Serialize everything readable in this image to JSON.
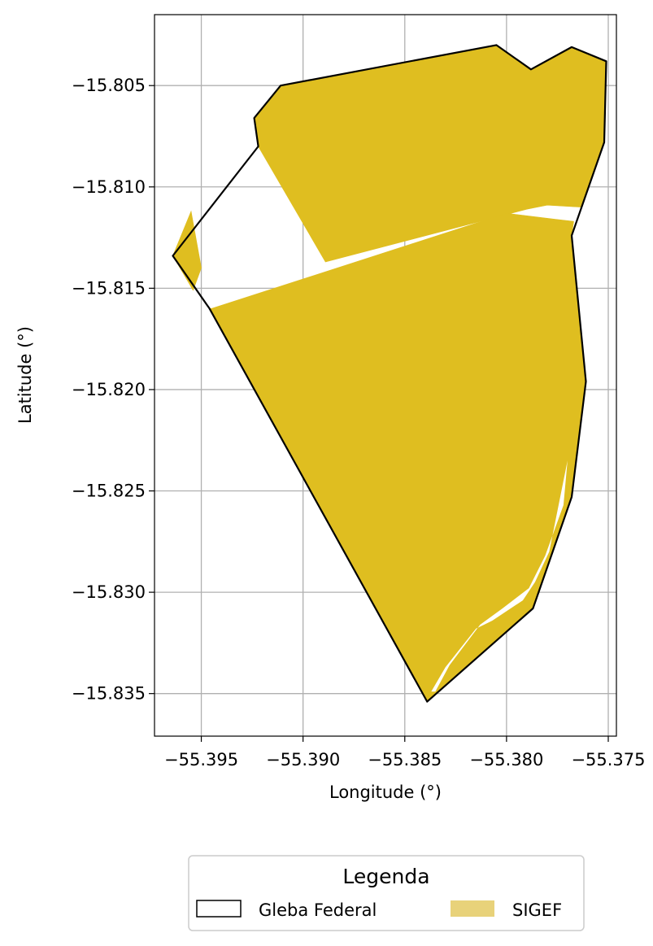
{
  "chart_data": {
    "type": "map",
    "xlabel": "Longitude (°)",
    "ylabel": "Latitude (°)",
    "xlim": [
      -55.3973,
      -55.3746
    ],
    "ylim": [
      -15.8371,
      -15.8015
    ],
    "x_ticks": [
      -55.395,
      -55.39,
      -55.385,
      -55.38,
      -55.375
    ],
    "x_tick_labels": [
      "−55.395",
      "−55.390",
      "−55.385",
      "−55.380",
      "−55.375"
    ],
    "y_ticks": [
      -15.805,
      -15.81,
      -15.815,
      -15.82,
      -15.825,
      -15.83,
      -15.835
    ],
    "y_tick_labels": [
      "−15.805",
      "−15.810",
      "−15.815",
      "−15.820",
      "−15.825",
      "−15.830",
      "−15.835"
    ],
    "grid": true,
    "legend": {
      "title": "Legenda",
      "placement": "bottom-center",
      "items": [
        {
          "label": "Gleba Federal",
          "style": "outline",
          "color": "#000000"
        },
        {
          "label": "SIGEF",
          "style": "fill",
          "color": "#e8d27a"
        }
      ]
    },
    "colors": {
      "sigef": "#dfbe20",
      "gleba_edge": "#000000",
      "grid": "#b0b0b0"
    },
    "gleba_federal": [
      [
        -55.3805,
        -15.803
      ],
      [
        -55.3788,
        -15.8042
      ],
      [
        -55.3768,
        -15.8031
      ],
      [
        -55.3751,
        -15.8038
      ],
      [
        -55.3752,
        -15.8078
      ],
      [
        -55.3768,
        -15.8124
      ],
      [
        -55.3761,
        -15.8196
      ],
      [
        -55.3768,
        -15.8253
      ],
      [
        -55.3787,
        -15.8308
      ],
      [
        -55.3839,
        -15.8354
      ],
      [
        -55.3946,
        -15.816
      ],
      [
        -55.3964,
        -15.8134
      ],
      [
        -55.3922,
        -15.808
      ],
      [
        -55.3924,
        -15.8066
      ],
      [
        -55.3911,
        -15.805
      ]
    ],
    "sigef_parcels": [
      [
        [
          -55.3805,
          -15.803
        ],
        [
          -55.3788,
          -15.8042
        ],
        [
          -55.3768,
          -15.8031
        ],
        [
          -55.3751,
          -15.8038
        ],
        [
          -55.3752,
          -15.8078
        ],
        [
          -55.3763,
          -15.811
        ],
        [
          -55.3763,
          -15.811
        ],
        [
          -55.378,
          -15.8109
        ],
        [
          -55.379,
          -15.8111
        ],
        [
          -55.3889,
          -15.8137
        ],
        [
          -55.3922,
          -15.808
        ],
        [
          -55.3924,
          -15.8066
        ],
        [
          -55.3911,
          -15.805
        ]
      ],
      [
        [
          -55.3964,
          -15.8134
        ],
        [
          -55.3955,
          -15.8112
        ],
        [
          -55.395,
          -15.814
        ],
        [
          -55.3954,
          -15.8151
        ]
      ],
      [
        [
          -55.3776,
          -15.8116
        ],
        [
          -55.3767,
          -15.8117
        ],
        [
          -55.3768,
          -15.8124
        ],
        [
          -55.3761,
          -15.8196
        ],
        [
          -55.3768,
          -15.8253
        ],
        [
          -55.3787,
          -15.8308
        ],
        [
          -55.3839,
          -15.8354
        ],
        [
          -55.3946,
          -15.816
        ],
        [
          -55.3945,
          -15.816
        ],
        [
          -55.38,
          -15.8113
        ]
      ]
    ],
    "gaps": [
      [
        [
          -55.377,
          -15.8235
        ],
        [
          -55.3774,
          -15.8255
        ],
        [
          -55.3779,
          -15.828
        ],
        [
          -55.3786,
          -15.8295
        ],
        [
          -55.3792,
          -15.8304
        ],
        [
          -55.3807,
          -15.8314
        ],
        [
          -55.3815,
          -15.8318
        ],
        [
          -55.383,
          -15.8337
        ],
        [
          -55.3837,
          -15.8349
        ],
        [
          -55.3835,
          -15.8349
        ],
        [
          -55.3828,
          -15.8336
        ],
        [
          -55.3813,
          -15.8316
        ],
        [
          -55.3802,
          -15.8308
        ],
        [
          -55.3789,
          -15.8298
        ],
        [
          -55.3781,
          -15.8282
        ],
        [
          -55.3772,
          -15.8257
        ]
      ]
    ]
  }
}
